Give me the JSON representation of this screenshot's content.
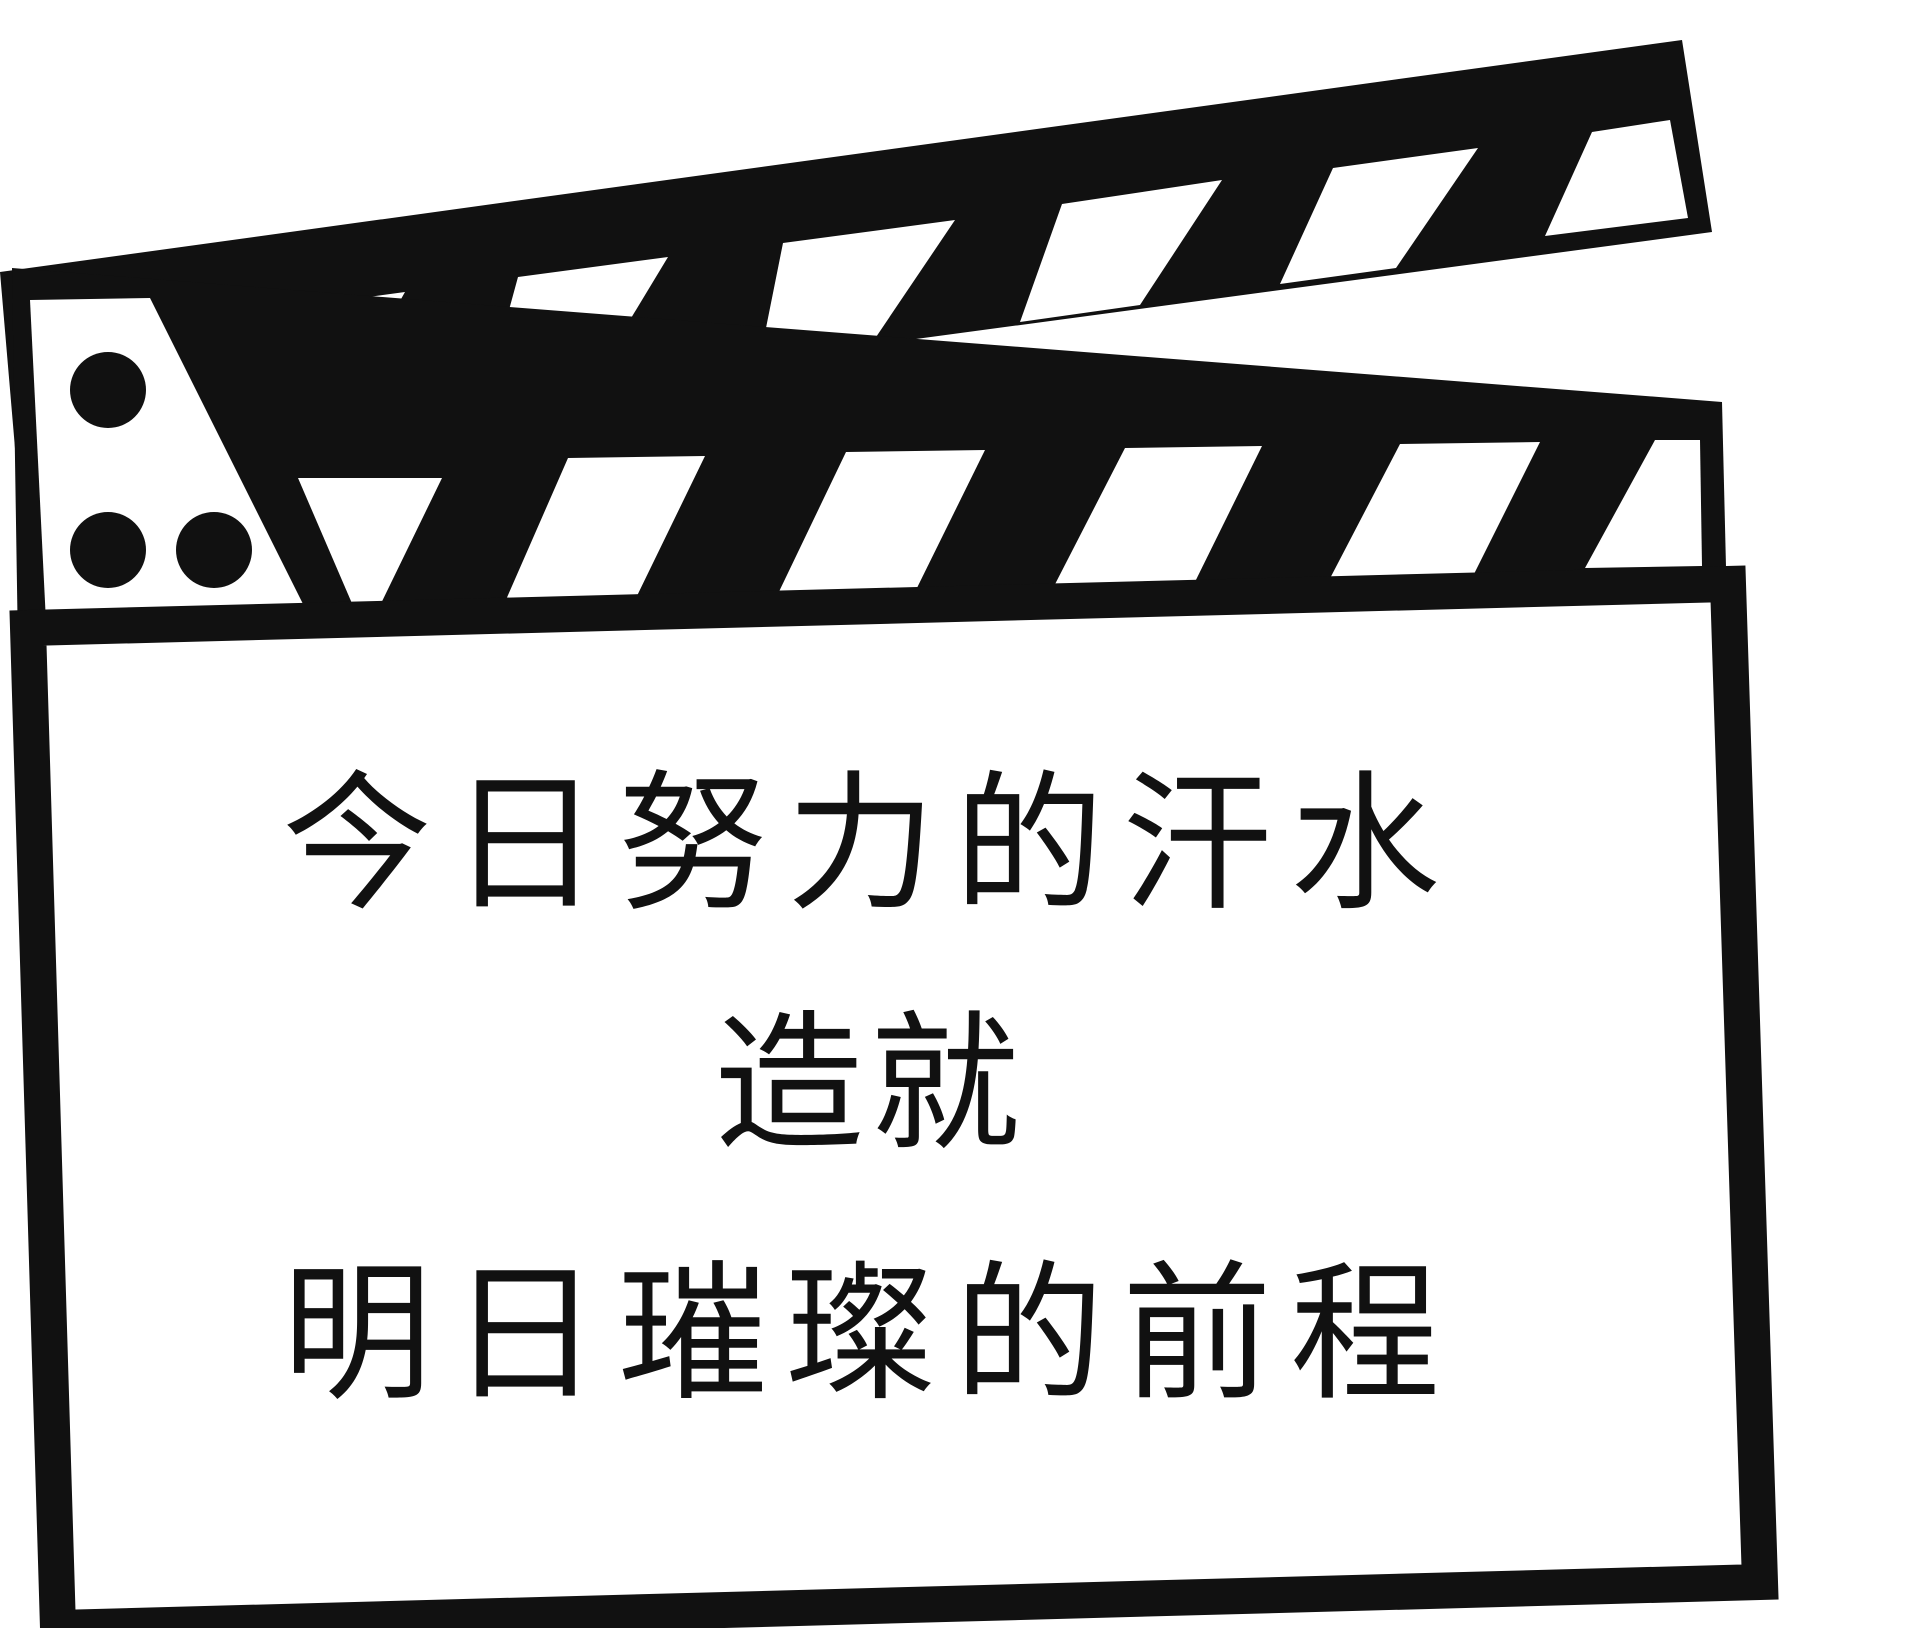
{
  "clapperboard": {
    "colors": {
      "ink": "#111111",
      "paper": "#ffffff"
    },
    "message": {
      "line1": "今日努力的汗水",
      "line2": "造就",
      "line3": "明日璀璨的前程"
    }
  }
}
